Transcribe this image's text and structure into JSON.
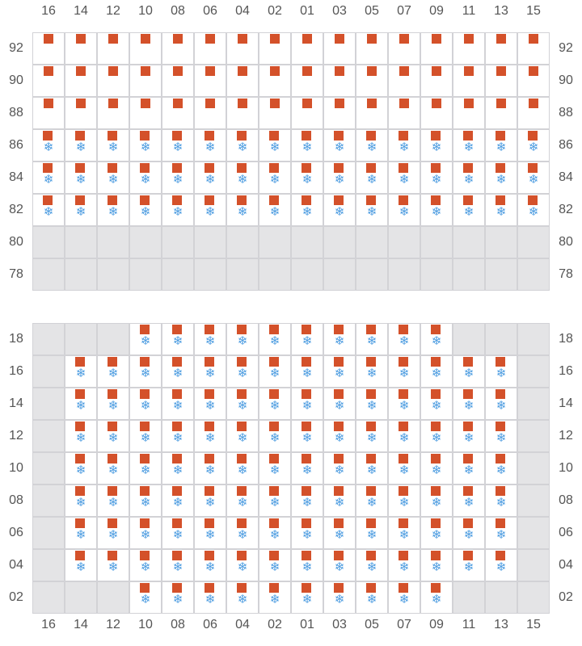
{
  "columns": [
    "16",
    "14",
    "12",
    "10",
    "08",
    "06",
    "04",
    "02",
    "01",
    "03",
    "05",
    "07",
    "09",
    "11",
    "13",
    "15"
  ],
  "cell_codes": {
    "A": "marker",
    "B": "marker+snowflake-icon",
    "X": "unavailable"
  },
  "colors": {
    "marker": "#d4512a",
    "snowflake": "#4a9be0",
    "unavailable": "#e4e4e6",
    "grid": "#d2d2d6"
  },
  "grids": [
    {
      "rows": [
        {
          "label": "92",
          "cells": "AAAAAAAAAAAAAAAA"
        },
        {
          "label": "90",
          "cells": "AAAAAAAAAAAAAAAA"
        },
        {
          "label": "88",
          "cells": "AAAAAAAAAAAAAAAA"
        },
        {
          "label": "86",
          "cells": "BBBBBBBBBBBBBBBB"
        },
        {
          "label": "84",
          "cells": "BBBBBBBBBBBBBBBB"
        },
        {
          "label": "82",
          "cells": "BBBBBBBBBBBBBBBB"
        },
        {
          "label": "80",
          "cells": "XXXXXXXXXXXXXXXX"
        },
        {
          "label": "78",
          "cells": "XXXXXXXXXXXXXXXX"
        }
      ]
    },
    {
      "rows": [
        {
          "label": "18",
          "cells": "XXXBBBBBBBBBBXXX"
        },
        {
          "label": "16",
          "cells": "XBBBBBBBBBBBBBBX"
        },
        {
          "label": "14",
          "cells": "XBBBBBBBBBBBBBBX"
        },
        {
          "label": "12",
          "cells": "XBBBBBBBBBBBBBBX"
        },
        {
          "label": "10",
          "cells": "XBBBBBBBBBBBBBBX"
        },
        {
          "label": "08",
          "cells": "XBBBBBBBBBBBBBBX"
        },
        {
          "label": "06",
          "cells": "XBBBBBBBBBBBBBBX"
        },
        {
          "label": "04",
          "cells": "XBBBBBBBBBBBBBBX"
        },
        {
          "label": "02",
          "cells": "XXXBBBBBBBBBBXXX"
        }
      ]
    }
  ]
}
